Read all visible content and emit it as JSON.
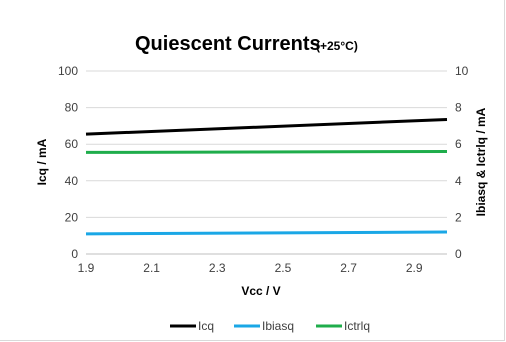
{
  "chart_data": {
    "type": "line",
    "title": "Quiescent Currents",
    "subtitle": "(+25°C)",
    "xlabel": "Vcc / V",
    "ylabel": "Icq / mA",
    "y2label": "Ibiasq & Ictrlq / mA",
    "xlim": [
      1.9,
      3.0
    ],
    "ylim": [
      0,
      100
    ],
    "y2lim": [
      0,
      10
    ],
    "x_ticks": [
      "1.9",
      "2.1",
      "2.3",
      "2.5",
      "2.7",
      "2.9"
    ],
    "y_ticks": [
      "0",
      "20",
      "40",
      "60",
      "80",
      "100"
    ],
    "y2_ticks": [
      "0",
      "2",
      "4",
      "6",
      "8",
      "10"
    ],
    "grid": true,
    "legend_position": "bottom",
    "series": [
      {
        "name": "Icq",
        "axis": "left",
        "color": "#000000",
        "x": [
          1.9,
          3.0
        ],
        "y": [
          65.5,
          73.5
        ]
      },
      {
        "name": "Ibiasq",
        "axis": "right",
        "color": "#1aa7e6",
        "x": [
          1.9,
          3.0
        ],
        "y": [
          1.1,
          1.2
        ]
      },
      {
        "name": "Ictrlq",
        "axis": "right",
        "color": "#1fad4b",
        "x": [
          1.9,
          3.0
        ],
        "y": [
          5.55,
          5.6
        ]
      }
    ]
  }
}
